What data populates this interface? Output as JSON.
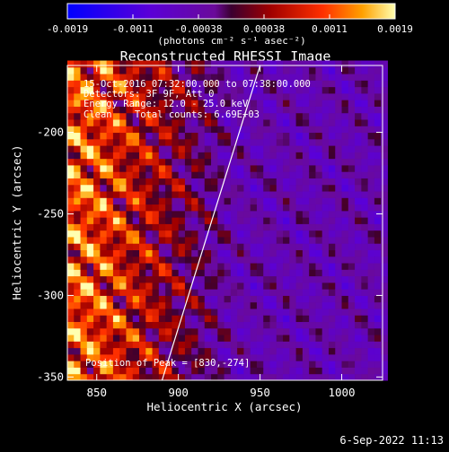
{
  "chart_data": {
    "type": "heatmap",
    "title": "Reconstructed RHESSI Image",
    "xlabel": "Heliocentric X (arcsec)",
    "ylabel": "Heliocentric Y (arcsec)",
    "xlim": [
      832,
      1025
    ],
    "ylim": [
      -352,
      -159
    ],
    "x_ticks": [
      850,
      900,
      950,
      1000
    ],
    "y_ticks": [
      -350,
      -300,
      -250,
      -200
    ],
    "colorbar": {
      "label": "(photons cm⁻² s⁻¹ asec⁻²)",
      "range": [
        -0.0019,
        0.0019
      ],
      "ticks": [
        "-0.0019",
        "-0.0011",
        "-0.00038",
        "0.00038",
        "0.0011",
        "0.0019"
      ]
    },
    "annotations": {
      "time_range": "15-Oct-2016 07:32:00.000 to 07:38:00.000",
      "detectors": "Detectors: 3F 9F, Att 0",
      "energy": "Energy Range: 12.0 - 25.0 keV",
      "clean": "Clean    Total counts: 6.69E+03",
      "peak": "Position of Peak = [830,-274]"
    },
    "limb_line": {
      "x": [
        890,
        950
      ],
      "y": [
        -352,
        -159
      ]
    },
    "grid_step_arcsec": 4
  },
  "footer": {
    "date": "6-Sep-2022 11:13"
  }
}
